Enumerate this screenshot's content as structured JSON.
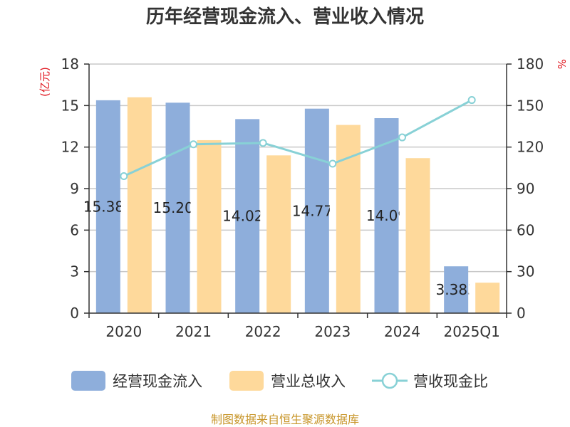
{
  "chart_data": {
    "type": "bar",
    "title": "历年经营现金流入、营业收入情况",
    "categories": [
      "2020",
      "2021",
      "2022",
      "2023",
      "2024",
      "2025Q1"
    ],
    "series": [
      {
        "name": "经营现金流入",
        "kind": "bar",
        "axis": "left",
        "color": "#8eaedb",
        "values": [
          15.384,
          15.207,
          14.022,
          14.777,
          14.09,
          3.383
        ],
        "data_labels": [
          "15.384",
          "15.207",
          "14.022",
          "14.777",
          "14.09",
          "3.383"
        ]
      },
      {
        "name": "营业总收入",
        "kind": "bar",
        "axis": "left",
        "color": "#fed99b",
        "values": [
          15.6,
          12.5,
          11.4,
          13.6,
          11.2,
          2.2
        ]
      },
      {
        "name": "营收现金比",
        "kind": "line",
        "axis": "right",
        "color": "#88d1d6",
        "values": [
          99,
          122,
          123,
          108,
          127,
          154
        ]
      }
    ],
    "y_left": {
      "unit": "(亿元)",
      "min": 0,
      "max": 18,
      "ticks": [
        "0",
        "3",
        "6",
        "9",
        "12",
        "15",
        "18"
      ]
    },
    "y_right": {
      "unit": "%",
      "min": 0,
      "max": 180,
      "ticks": [
        "0",
        "30",
        "60",
        "90",
        "120",
        "150",
        "180"
      ]
    },
    "grid": true,
    "legend_position": "bottom"
  },
  "source_note": "制图数据来自恒生聚源数据库"
}
